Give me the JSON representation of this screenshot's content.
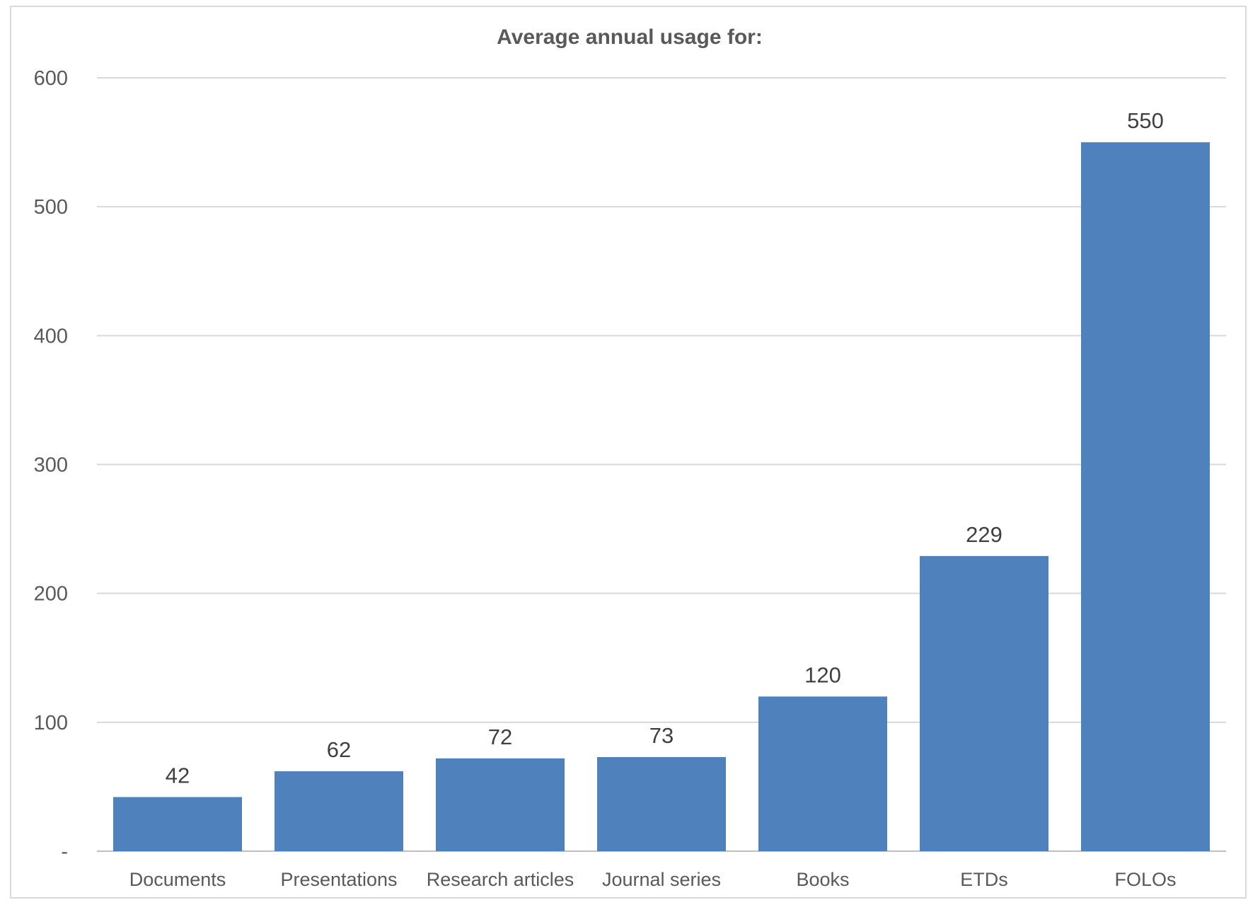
{
  "chart_data": {
    "type": "bar",
    "title": "Average annual usage for:",
    "categories": [
      "Documents",
      "Presentations",
      "Research articles",
      "Journal series",
      "Books",
      "ETDs",
      "FOLOs"
    ],
    "values": [
      42,
      62,
      72,
      73,
      120,
      229,
      550
    ],
    "data_labels": [
      "42",
      "62",
      "72",
      "73",
      "120",
      "229",
      "550"
    ],
    "ylim": [
      0,
      600
    ],
    "yticks": [
      0,
      100,
      200,
      300,
      400,
      500,
      600
    ],
    "ytick_labels": [
      "-",
      "100",
      "200",
      "300",
      "400",
      "500",
      "600"
    ],
    "xlabel": "",
    "ylabel": "",
    "grid": true,
    "legend": "none",
    "colors": {
      "bar": "#4f81bd",
      "grid": "#d9d9d9",
      "axis": "#bfbfbf",
      "text": "#595959",
      "label": "#404040"
    }
  }
}
